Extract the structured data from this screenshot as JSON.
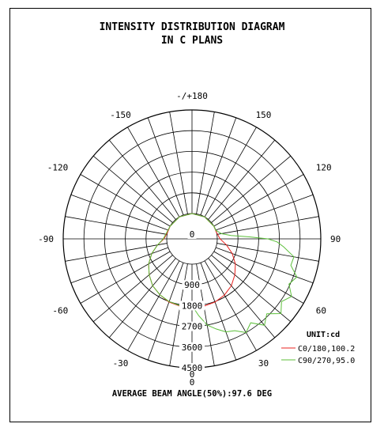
{
  "chart_data": {
    "type": "polar",
    "title": "INTENSITY DISTRIBUTION DIAGRAM",
    "subtitle": "IN C PLANS",
    "angle_labels": [
      {
        "angle": 0,
        "text": "0"
      },
      {
        "angle": 30,
        "text": "30"
      },
      {
        "angle": 60,
        "text": "60"
      },
      {
        "angle": 90,
        "text": "90"
      },
      {
        "angle": 120,
        "text": "120"
      },
      {
        "angle": 150,
        "text": "150"
      },
      {
        "angle": 180,
        "text": "-/+180"
      },
      {
        "angle": -150,
        "text": "-150"
      },
      {
        "angle": -120,
        "text": "-120"
      },
      {
        "angle": -90,
        "text": "-90"
      },
      {
        "angle": -60,
        "text": "-60"
      },
      {
        "angle": -30,
        "text": "-30"
      }
    ],
    "radial_ticks": [
      {
        "value": 0,
        "text": "0"
      },
      {
        "value": 900,
        "text": "900"
      },
      {
        "value": 1800,
        "text": "1800"
      },
      {
        "value": 2700,
        "text": "2700"
      },
      {
        "value": 3600,
        "text": "3600"
      },
      {
        "value": 4500,
        "text": "4500"
      }
    ],
    "radial_max": 4500,
    "unit_label": "UNIT:cd",
    "series": [
      {
        "name": "C0/180,100.2",
        "color": "#e8231f",
        "angles": [
          -180,
          -150,
          -120,
          -105,
          -90,
          -80,
          -70,
          -60,
          -50,
          -40,
          -30,
          -20,
          -10,
          0,
          10,
          20,
          30,
          40,
          50,
          60,
          70,
          80,
          90,
          105,
          120,
          150,
          180
        ],
        "values": [
          0,
          0,
          0,
          0,
          120,
          420,
          760,
          1080,
          1330,
          1560,
          1700,
          1820,
          1870,
          1900,
          1870,
          1820,
          1720,
          1560,
          1330,
          1080,
          760,
          420,
          120,
          0,
          0,
          0,
          0
        ]
      },
      {
        "name": "C90/270,95.0",
        "color": "#5cbf3a",
        "angles": [
          0,
          5,
          10,
          15,
          20,
          25,
          30,
          35,
          40,
          45,
          50,
          55,
          60,
          65,
          70,
          75,
          80,
          85,
          88,
          90,
          92,
          95,
          100,
          110,
          120,
          150,
          180,
          -180,
          -150,
          -120,
          -90,
          -80,
          -70,
          -60,
          -50,
          -40,
          -30,
          -20,
          -10,
          -5
        ],
        "values": [
          1800,
          2250,
          2700,
          2950,
          3200,
          3300,
          3600,
          3350,
          3800,
          3500,
          3950,
          3650,
          3900,
          3550,
          3750,
          3350,
          3400,
          2900,
          2600,
          2200,
          1400,
          600,
          200,
          0,
          0,
          0,
          0,
          0,
          0,
          0,
          150,
          420,
          760,
          1080,
          1330,
          1560,
          1700,
          1800,
          1850,
          1820
        ]
      }
    ],
    "footer": "AVERAGE BEAM ANGLE(50%):97.6 DEG"
  }
}
